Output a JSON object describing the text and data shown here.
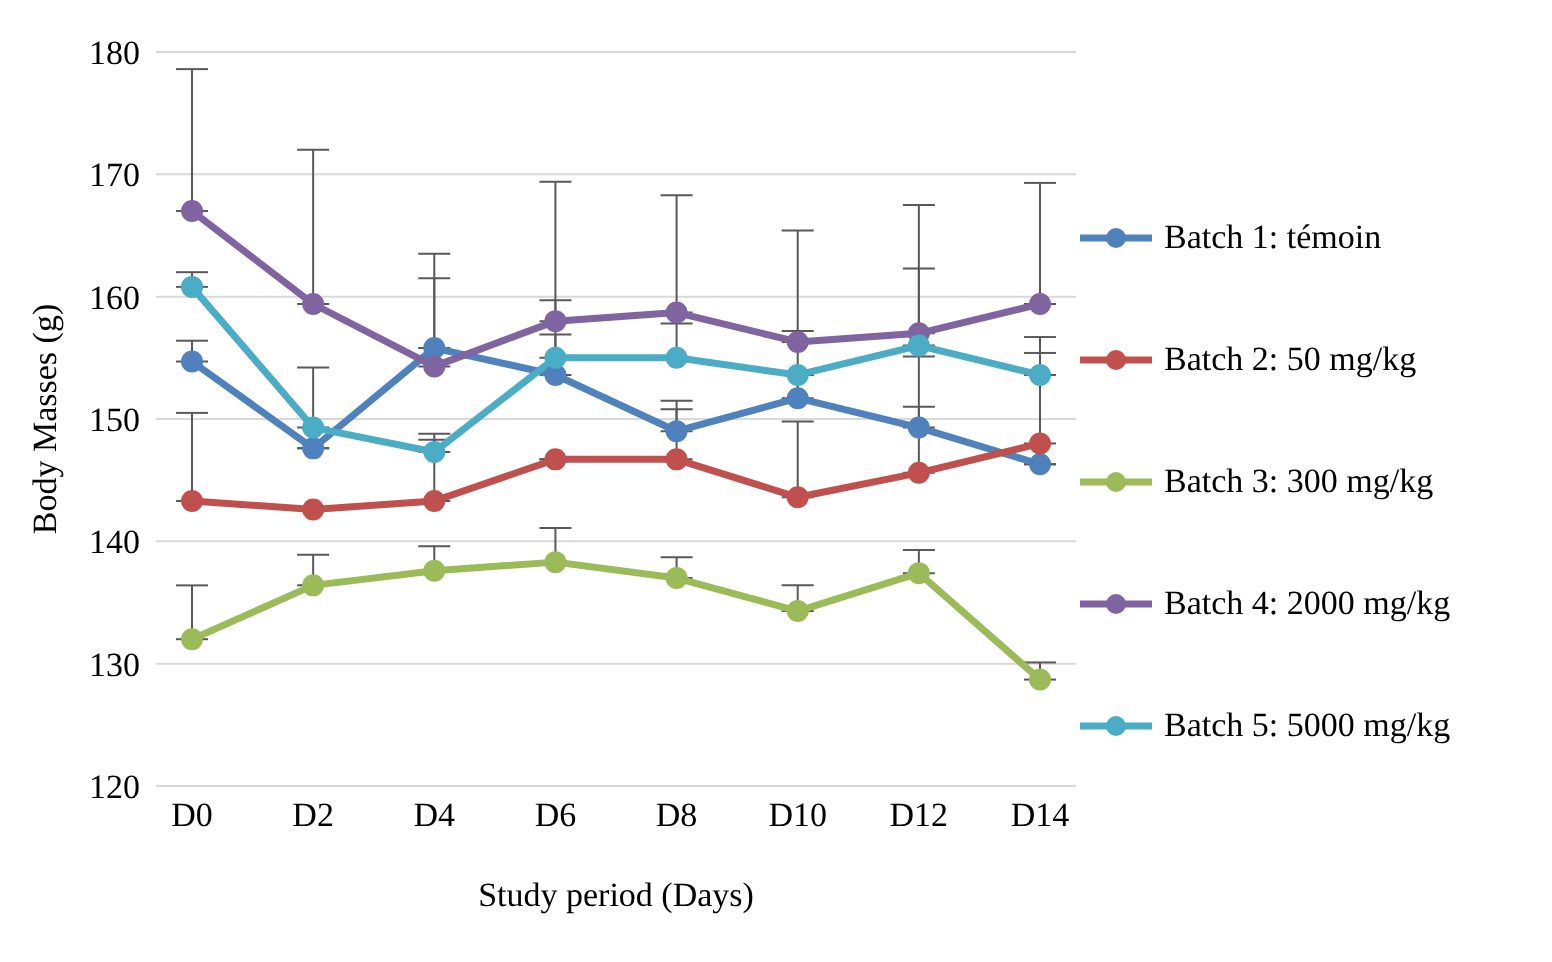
{
  "chart_data": {
    "type": "line",
    "xlabel": "Study period (Days)",
    "ylabel": "Body Masses (g)",
    "categories": [
      "D0",
      "D2",
      "D4",
      "D6",
      "D8",
      "D10",
      "D12",
      "D14"
    ],
    "ylim": [
      120,
      180
    ],
    "yticks": [
      120,
      130,
      140,
      150,
      160,
      170,
      180
    ],
    "grid": "y",
    "legend": "right",
    "marker": "circle",
    "line_style": "solid",
    "series": [
      {
        "name": "Batch 1: témoin",
        "color": "#4f81bd",
        "values": [
          154.7,
          147.6,
          155.8,
          153.6,
          149,
          151.7,
          149.3,
          146.3
        ],
        "errors": [
          [
            154.7,
            156.4
          ],
          null,
          [
            155.8,
            163.5
          ],
          [
            153.6,
            159.7
          ],
          [
            149,
            151.5
          ],
          [
            151.7,
            157.2
          ],
          [
            149.3,
            155.1
          ],
          null
        ]
      },
      {
        "name": "Batch 2: 50 mg/kg",
        "color": "#c0504d",
        "values": [
          143.3,
          142.6,
          143.3,
          146.7,
          146.7,
          143.6,
          145.6,
          148
        ],
        "errors": [
          [
            143.3,
            150.5
          ],
          null,
          [
            143.3,
            148.3
          ],
          null,
          [
            146.7,
            150.8
          ],
          [
            143.6,
            149.8
          ],
          [
            145.6,
            151
          ],
          [
            148,
            155.4
          ]
        ]
      },
      {
        "name": "Batch 3: 300 mg/kg",
        "color": "#9bbb59",
        "values": [
          132,
          136.4,
          137.6,
          138.3,
          137,
          134.3,
          137.4,
          128.7
        ],
        "errors": [
          [
            132,
            136.4
          ],
          [
            136.4,
            138.9
          ],
          [
            137.6,
            139.6
          ],
          [
            138.3,
            141.1
          ],
          [
            137,
            138.7
          ],
          [
            134.3,
            136.4
          ],
          [
            137.4,
            139.3
          ],
          [
            128.7,
            130.1
          ]
        ]
      },
      {
        "name": "Batch 4: 2000 mg/kg",
        "color": "#8064a2",
        "values": [
          167,
          159.4,
          154.3,
          158,
          158.7,
          156.3,
          157,
          159.4
        ],
        "errors": [
          [
            167,
            178.6
          ],
          [
            159.4,
            172
          ],
          [
            154.3,
            161.5
          ],
          [
            158,
            169.4
          ],
          [
            158.7,
            168.3
          ],
          [
            156.3,
            165.4
          ],
          [
            157,
            167.5
          ],
          [
            159.4,
            169.3
          ]
        ]
      },
      {
        "name": "Batch 5: 5000 mg/kg",
        "color": "#4bacc6",
        "values": [
          160.8,
          149.3,
          147.3,
          155,
          155,
          153.6,
          156,
          153.6
        ],
        "errors": [
          [
            160.8,
            162
          ],
          [
            149.3,
            154.2
          ],
          [
            147.3,
            148.8
          ],
          [
            155,
            156.9
          ],
          [
            155,
            157.8
          ],
          null,
          [
            156,
            162.3
          ],
          [
            153.6,
            156.7
          ]
        ]
      }
    ]
  }
}
